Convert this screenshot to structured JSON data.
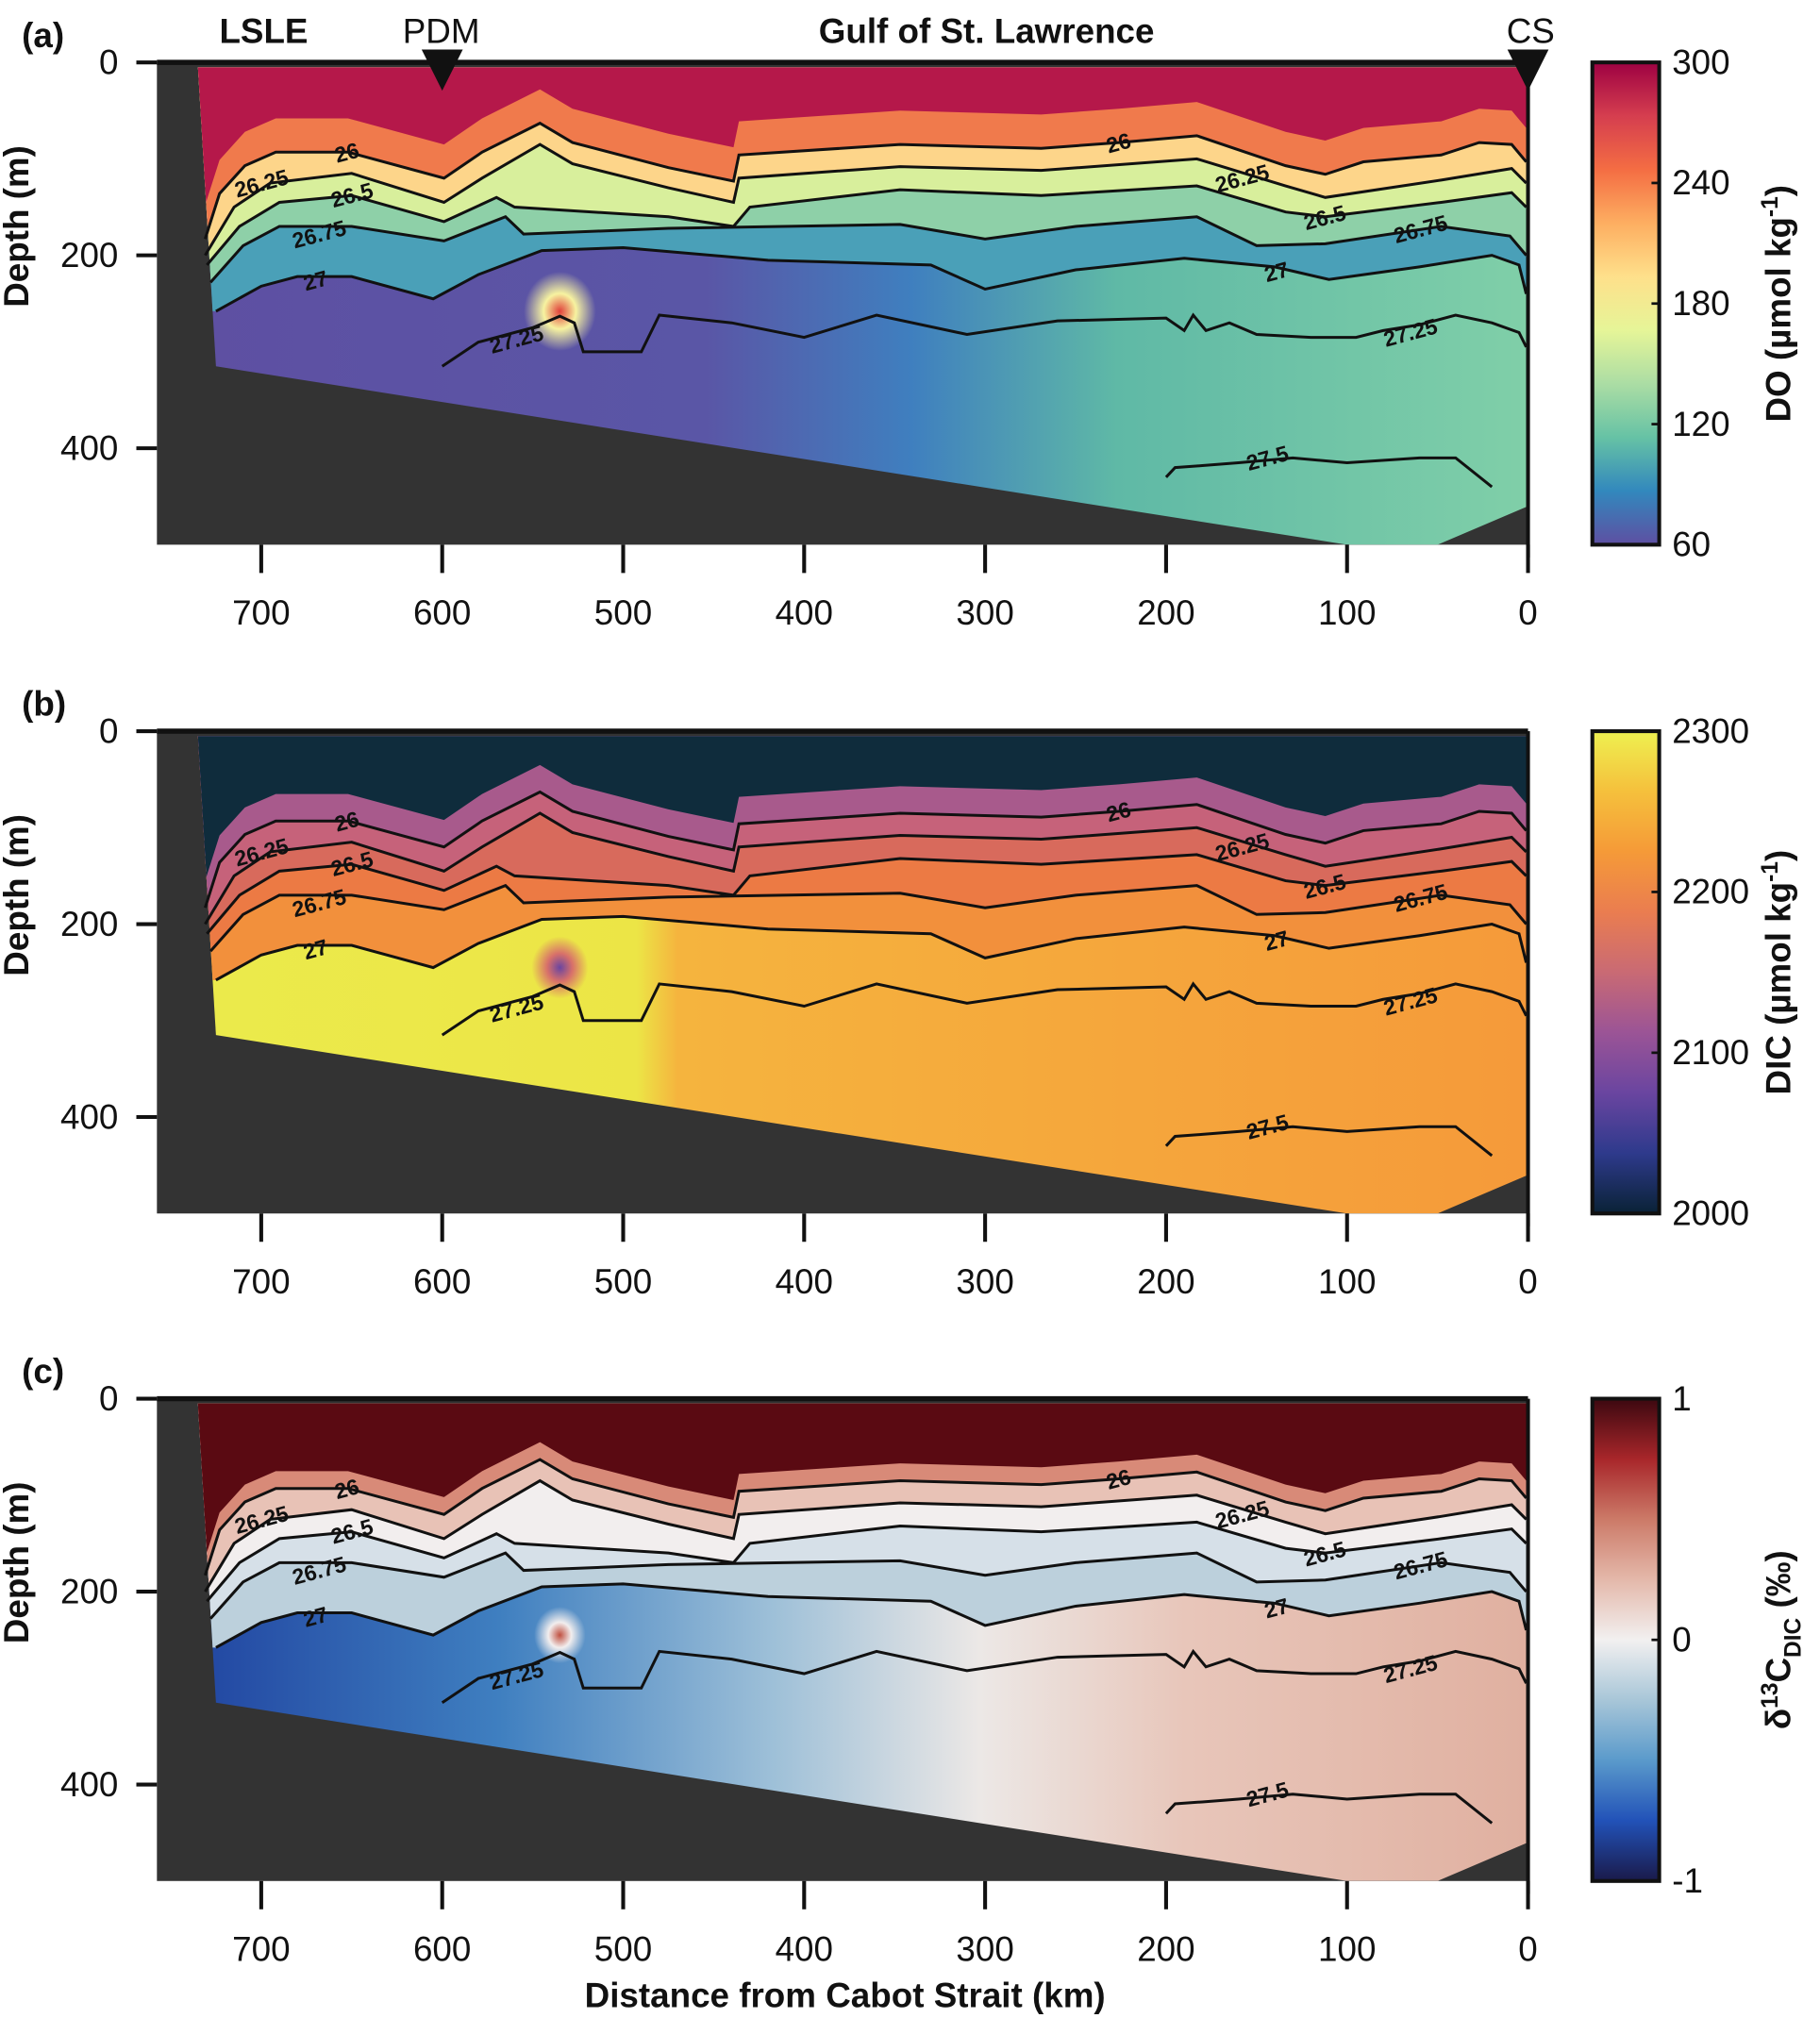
{
  "chart_data": {
    "type": "heatmap",
    "title_row": {
      "lsle": "LSLE",
      "pdm": "PDM",
      "gulf": "Gulf of St. Lawrence",
      "cs": "CS"
    },
    "station_markers": [
      {
        "name": "PDM",
        "distance_km": 600
      },
      {
        "name": "CS",
        "distance_km": 0
      }
    ],
    "xlabel": "Distance from Cabot Strait (km)",
    "ylabel": "Depth (m)",
    "xlim": [
      757,
      0
    ],
    "ylim": [
      0,
      500
    ],
    "xticks": [
      700,
      600,
      500,
      400,
      300,
      200,
      100,
      0
    ],
    "yticks": [
      0,
      200,
      400
    ],
    "bathymetry_km_m": [
      [
        735,
        5
      ],
      [
        725,
        315
      ],
      [
        100,
        500
      ],
      [
        50,
        500
      ],
      [
        0,
        460
      ],
      [
        0,
        5
      ]
    ],
    "isopycnals": [
      {
        "level": "26",
        "points": [
          [
            731,
            183
          ],
          [
            723,
            136
          ],
          [
            709,
            107
          ],
          [
            692,
            93
          ],
          [
            652,
            93
          ],
          [
            599,
            120
          ],
          [
            578,
            93
          ],
          [
            546,
            63
          ],
          [
            528,
            83
          ],
          [
            475,
            109
          ],
          [
            439,
            123
          ],
          [
            436,
            96
          ],
          [
            347,
            85
          ],
          [
            269,
            89
          ],
          [
            226,
            83
          ],
          [
            183,
            76
          ],
          [
            134,
            107
          ],
          [
            112,
            116
          ],
          [
            91,
            103
          ],
          [
            48,
            96
          ],
          [
            27,
            83
          ],
          [
            9,
            85
          ],
          [
            1,
            103
          ]
        ]
      },
      {
        "level": "26.25",
        "points": [
          [
            731,
            200
          ],
          [
            715,
            150
          ],
          [
            695,
            125
          ],
          [
            650,
            115
          ],
          [
            599,
            145
          ],
          [
            578,
            120
          ],
          [
            546,
            85
          ],
          [
            528,
            105
          ],
          [
            475,
            130
          ],
          [
            439,
            145
          ],
          [
            436,
            120
          ],
          [
            347,
            108
          ],
          [
            269,
            112
          ],
          [
            183,
            100
          ],
          [
            134,
            128
          ],
          [
            112,
            140
          ],
          [
            48,
            122
          ],
          [
            9,
            110
          ],
          [
            1,
            125
          ]
        ]
      },
      {
        "level": "26.5",
        "points": [
          [
            730,
            210
          ],
          [
            712,
            170
          ],
          [
            690,
            145
          ],
          [
            650,
            138
          ],
          [
            599,
            165
          ],
          [
            570,
            140
          ],
          [
            560,
            150
          ],
          [
            475,
            160
          ],
          [
            439,
            170
          ],
          [
            430,
            150
          ],
          [
            347,
            132
          ],
          [
            269,
            138
          ],
          [
            183,
            128
          ],
          [
            134,
            155
          ],
          [
            112,
            160
          ],
          [
            48,
            145
          ],
          [
            9,
            135
          ],
          [
            1,
            150
          ]
        ]
      },
      {
        "level": "26.75",
        "points": [
          [
            728,
            228
          ],
          [
            710,
            190
          ],
          [
            690,
            170
          ],
          [
            650,
            170
          ],
          [
            599,
            185
          ],
          [
            565,
            160
          ],
          [
            555,
            178
          ],
          [
            475,
            172
          ],
          [
            347,
            168
          ],
          [
            300,
            183
          ],
          [
            250,
            170
          ],
          [
            183,
            160
          ],
          [
            150,
            190
          ],
          [
            112,
            188
          ],
          [
            48,
            170
          ],
          [
            10,
            180
          ],
          [
            1,
            200
          ]
        ]
      },
      {
        "level": "27",
        "points": [
          [
            725,
            258
          ],
          [
            700,
            232
          ],
          [
            680,
            222
          ],
          [
            650,
            222
          ],
          [
            605,
            245
          ],
          [
            580,
            220
          ],
          [
            545,
            195
          ],
          [
            500,
            192
          ],
          [
            420,
            205
          ],
          [
            330,
            210
          ],
          [
            300,
            235
          ],
          [
            250,
            215
          ],
          [
            190,
            203
          ],
          [
            140,
            212
          ],
          [
            110,
            225
          ],
          [
            60,
            212
          ],
          [
            20,
            200
          ],
          [
            5,
            210
          ],
          [
            1,
            240
          ]
        ]
      },
      {
        "level": "27.25",
        "points": [
          [
            600,
            315
          ],
          [
            580,
            290
          ],
          [
            550,
            275
          ],
          [
            535,
            263
          ],
          [
            527,
            270
          ],
          [
            522,
            300
          ],
          [
            490,
            300
          ],
          [
            480,
            262
          ],
          [
            440,
            270
          ],
          [
            400,
            285
          ],
          [
            360,
            262
          ],
          [
            310,
            282
          ],
          [
            260,
            268
          ],
          [
            200,
            265
          ],
          [
            190,
            278
          ],
          [
            185,
            262
          ],
          [
            178,
            278
          ],
          [
            165,
            270
          ],
          [
            150,
            282
          ],
          [
            120,
            285
          ],
          [
            95,
            285
          ],
          [
            80,
            278
          ],
          [
            60,
            272
          ],
          [
            40,
            262
          ],
          [
            20,
            270
          ],
          [
            5,
            280
          ],
          [
            1,
            295
          ]
        ]
      },
      {
        "level": "27.5",
        "points": [
          [
            200,
            430
          ],
          [
            195,
            420
          ],
          [
            180,
            418
          ],
          [
            160,
            415
          ],
          [
            130,
            410
          ],
          [
            100,
            415
          ],
          [
            60,
            410
          ],
          [
            40,
            410
          ],
          [
            20,
            440
          ]
        ]
      }
    ],
    "contour_labels": [
      {
        "text": "26",
        "km": 684,
        "m": 100
      },
      {
        "text": "26.25",
        "km": 675,
        "m": 116
      },
      {
        "text": "26.5",
        "km": 679,
        "m": 132
      },
      {
        "text": "26.75",
        "km": 668,
        "m": 178
      },
      {
        "text": "27",
        "km": 670,
        "m": 226
      },
      {
        "text": "27.25",
        "km": 559,
        "m": 287
      },
      {
        "text": "26",
        "km": 168,
        "m": 94
      },
      {
        "text": "26.25",
        "km": 158,
        "m": 120
      },
      {
        "text": "26.5",
        "km": 150,
        "m": 150
      },
      {
        "text": "26.75",
        "km": 139,
        "m": 182
      },
      {
        "text": "27",
        "km": 139,
        "m": 217
      },
      {
        "text": "27.25",
        "km": 65,
        "m": 280
      },
      {
        "text": "27.5",
        "km": 144,
        "m": 410
      }
    ],
    "panels": [
      {
        "id": "a",
        "tag": "(a)",
        "variable": "DO",
        "cbar_label": "DO (µmol kg",
        "cbar_sup": "-1",
        "cbar_end": ")",
        "cbar_ticks": [
          60,
          120,
          180,
          240,
          300
        ],
        "crange": [
          60,
          300
        ],
        "cmap": [
          "#5e4fa2",
          "#3288bd",
          "#66c2a5",
          "#abdda4",
          "#e6f598",
          "#fee08b",
          "#fdae61",
          "#f46d43",
          "#d53e4f",
          "#9e0142"
        ],
        "base": [
          [
            "0",
            "#5e4fa2"
          ],
          [
            "0.4",
            "#5a56a6"
          ],
          [
            "0.55",
            "#3f7fbf"
          ],
          [
            "0.7",
            "#5fb9a6"
          ],
          [
            "1",
            "#80cfa8"
          ]
        ],
        "layers": [
          [
            "27",
            "#4aa0b8"
          ],
          [
            "26.75",
            "#8ed0a8"
          ],
          [
            "26.5",
            "#d8ef9c"
          ],
          [
            "26.25",
            "#fdd58a"
          ],
          [
            "26",
            "#f07a4c"
          ]
        ],
        "surface": [
          [
            35,
            "#b5184a"
          ]
        ],
        "blobs": [
          {
            "km": 535,
            "m": 258,
            "r": 28,
            "color": "#f7f3a0",
            "core": "#e0403a"
          }
        ]
      },
      {
        "id": "b",
        "tag": "(b)",
        "variable": "DIC",
        "cbar_label": "DIC (µmol kg",
        "cbar_sup": "-1",
        "cbar_end": ")",
        "cbar_ticks": [
          2000,
          2100,
          2200,
          2300
        ],
        "crange": [
          2000,
          2300
        ],
        "cmap": [
          "#0a2236",
          "#2e3a8c",
          "#6a45a0",
          "#9b5496",
          "#c96a74",
          "#ea7d50",
          "#f59a38",
          "#f5c03c",
          "#eef050"
        ],
        "base": [
          [
            "0",
            "#ebeb4c"
          ],
          [
            "0.35",
            "#ece546"
          ],
          [
            "0.38",
            "#f5b43e"
          ],
          [
            "1",
            "#f59a3a"
          ]
        ],
        "layers": [
          [
            "27",
            "#f2903c"
          ],
          [
            "26.75",
            "#ec7a44"
          ],
          [
            "26.5",
            "#d86a5c"
          ],
          [
            "26.25",
            "#c6627a"
          ],
          [
            "26",
            "#a85a8c"
          ]
        ],
        "surface": [
          [
            55,
            "#5c44a2"
          ],
          [
            28,
            "#0f2c3c"
          ]
        ],
        "blobs": [
          {
            "km": 535,
            "m": 245,
            "r": 22,
            "color": "#d8706a",
            "core": "#6a45a0"
          }
        ]
      },
      {
        "id": "c",
        "tag": "(c)",
        "variable": "δ13C_DIC",
        "cbar_label": "δ",
        "cbar_sup": "13",
        "cbar_mid": "C",
        "cbar_sub": "DIC",
        "cbar_end": " (‰)",
        "cbar_ticks": [
          -1,
          0,
          1
        ],
        "crange": [
          -1,
          1
        ],
        "cmap": [
          "#1a1a4a",
          "#2252b8",
          "#5a9acb",
          "#a8c6d8",
          "#f2f0f0",
          "#e4b8aa",
          "#cc7a68",
          "#a8262a",
          "#3c0810"
        ],
        "base": [
          [
            "0",
            "#1e3f9e"
          ],
          [
            "0.25",
            "#3f7fc0"
          ],
          [
            "0.45",
            "#9ec0d8"
          ],
          [
            "0.6",
            "#ece8e6"
          ],
          [
            "0.75",
            "#e8c6ba"
          ],
          [
            "1",
            "#e0b0a0"
          ]
        ],
        "layers": [
          [
            "27",
            "#bcd0dc"
          ],
          [
            "26.75",
            "#d6e0e8"
          ],
          [
            "26.5",
            "#f2eeee"
          ],
          [
            "26.25",
            "#e8c2b6"
          ],
          [
            "26",
            "#d88a78"
          ]
        ],
        "surface": [
          [
            40,
            "#b0302a"
          ],
          [
            18,
            "#5a0a12"
          ]
        ],
        "blobs": [
          {
            "km": 535,
            "m": 245,
            "r": 20,
            "color": "#f2eeee",
            "core": "#c05040"
          }
        ]
      }
    ]
  }
}
